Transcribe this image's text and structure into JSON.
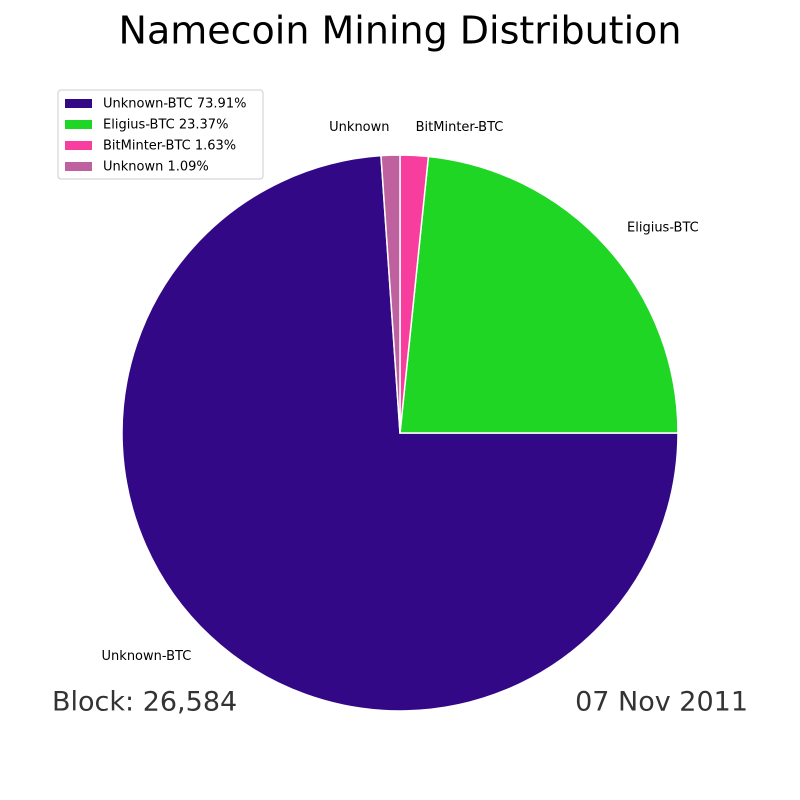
{
  "chart_data": {
    "type": "pie",
    "title": "Namecoin Mining Distribution",
    "categories": [
      "Unknown-BTC",
      "Eligius-BTC",
      "BitMinter-BTC",
      "Unknown"
    ],
    "values": [
      73.91,
      23.37,
      1.63,
      1.09
    ],
    "legend_labels": [
      "Unknown-BTC 73.91%",
      "Eligius-BTC 23.37%",
      "BitMinter-BTC 1.63%",
      "Unknown 1.09%"
    ],
    "colors": [
      "#330887",
      "#1fd624",
      "#f73e9e",
      "#c0619f"
    ],
    "annotations": [
      "Block: 26,584",
      "07 Nov 2011"
    ]
  }
}
